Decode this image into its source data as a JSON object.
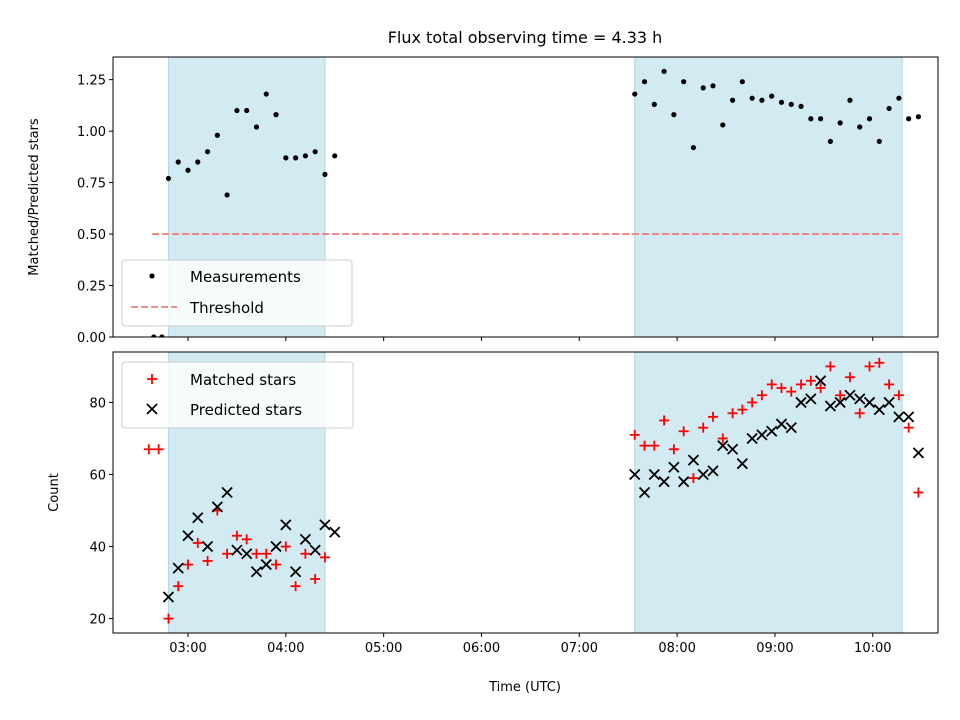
{
  "title": "Flux total observing time = 4.33 h",
  "colors": {
    "span_fill": "#add8e6",
    "measurement": "#000000",
    "threshold": "#f08080",
    "matched": "#ff0000",
    "predicted": "#000000"
  },
  "chart_data": [
    {
      "type": "scatter",
      "ylabel": "Matched/Predicted stars",
      "ylim": [
        0,
        1.36
      ],
      "xlim": [
        "02:14",
        "10:40"
      ],
      "yticks": [
        "0.00",
        "0.25",
        "0.50",
        "0.75",
        "1.00",
        "1.25"
      ],
      "ytick_values": [
        0,
        0.25,
        0.5,
        0.75,
        1.0,
        1.25
      ],
      "observing_windows": [
        [
          "02:48",
          "04:24"
        ],
        [
          "07:34",
          "10:18"
        ]
      ],
      "legend": {
        "placement": "lower left",
        "entries": [
          "Measurements",
          "Threshold"
        ]
      },
      "threshold": {
        "name": "Threshold",
        "value": 0.5,
        "x_range": [
          "02:38",
          "10:18"
        ]
      },
      "series": [
        {
          "name": "Measurements",
          "marker": "dot",
          "x": [
            "02:39",
            "02:44",
            "02:48",
            "02:54",
            "03:00",
            "03:06",
            "03:12",
            "03:18",
            "03:24",
            "03:30",
            "03:36",
            "03:42",
            "03:48",
            "03:54",
            "04:00",
            "04:06",
            "04:12",
            "04:18",
            "04:24",
            "04:30",
            "07:34",
            "07:40",
            "07:46",
            "07:52",
            "07:58",
            "08:04",
            "08:10",
            "08:16",
            "08:22",
            "08:28",
            "08:34",
            "08:40",
            "08:46",
            "08:52",
            "08:58",
            "09:04",
            "09:10",
            "09:16",
            "09:22",
            "09:28",
            "09:34",
            "09:40",
            "09:46",
            "09:52",
            "09:58",
            "10:04",
            "10:10",
            "10:16",
            "10:22",
            "10:28"
          ],
          "y": [
            0.0,
            0.0,
            0.77,
            0.85,
            0.81,
            0.85,
            0.9,
            0.98,
            0.69,
            1.1,
            1.1,
            1.02,
            1.18,
            1.08,
            0.87,
            0.87,
            0.88,
            0.9,
            0.79,
            0.88,
            1.18,
            1.24,
            1.13,
            1.29,
            1.08,
            1.24,
            0.92,
            1.21,
            1.22,
            1.03,
            1.15,
            1.24,
            1.16,
            1.15,
            1.17,
            1.14,
            1.13,
            1.12,
            1.06,
            1.06,
            0.95,
            1.04,
            1.15,
            1.02,
            1.06,
            0.95,
            1.11,
            1.16,
            1.06,
            1.07
          ]
        }
      ]
    },
    {
      "type": "scatter",
      "ylabel": "Count",
      "xlabel": "Time (UTC)",
      "ylim": [
        16,
        94
      ],
      "xlim": [
        "02:14",
        "10:40"
      ],
      "yticks": [
        "20",
        "40",
        "60",
        "80"
      ],
      "ytick_values": [
        20,
        40,
        60,
        80
      ],
      "xticks": [
        "03:00",
        "04:00",
        "05:00",
        "06:00",
        "07:00",
        "08:00",
        "09:00",
        "10:00"
      ],
      "observing_windows": [
        [
          "02:48",
          "04:24"
        ],
        [
          "07:34",
          "10:18"
        ]
      ],
      "legend": {
        "placement": "upper left",
        "entries": [
          "Matched stars",
          "Predicted stars"
        ]
      },
      "series": [
        {
          "name": "Matched stars",
          "marker": "+",
          "x": [
            "02:36",
            "02:42",
            "02:48",
            "02:54",
            "03:00",
            "03:06",
            "03:12",
            "03:18",
            "03:24",
            "03:30",
            "03:36",
            "03:42",
            "03:48",
            "03:54",
            "04:00",
            "04:06",
            "04:12",
            "04:18",
            "04:24",
            "07:34",
            "07:40",
            "07:46",
            "07:52",
            "07:58",
            "08:04",
            "08:10",
            "08:16",
            "08:22",
            "08:28",
            "08:34",
            "08:40",
            "08:46",
            "08:52",
            "08:58",
            "09:04",
            "09:10",
            "09:16",
            "09:22",
            "09:28",
            "09:34",
            "09:40",
            "09:46",
            "09:52",
            "09:58",
            "10:04",
            "10:10",
            "10:16",
            "10:22",
            "10:28"
          ],
          "y": [
            67,
            67,
            20,
            29,
            35,
            41,
            36,
            50,
            38,
            43,
            42,
            38,
            38,
            35,
            40,
            29,
            38,
            31,
            37,
            71,
            68,
            68,
            75,
            67,
            72,
            59,
            73,
            76,
            70,
            77,
            78,
            80,
            82,
            85,
            84,
            83,
            85,
            86,
            84,
            90,
            82,
            87,
            77,
            90,
            91,
            85,
            82,
            73,
            55
          ]
        },
        {
          "name": "Predicted stars",
          "marker": "x",
          "x": [
            "02:48",
            "02:54",
            "03:00",
            "03:06",
            "03:12",
            "03:18",
            "03:24",
            "03:30",
            "03:36",
            "03:42",
            "03:48",
            "03:54",
            "04:00",
            "04:06",
            "04:12",
            "04:18",
            "04:24",
            "04:30",
            "07:34",
            "07:40",
            "07:46",
            "07:52",
            "07:58",
            "08:04",
            "08:10",
            "08:16",
            "08:22",
            "08:28",
            "08:34",
            "08:40",
            "08:46",
            "08:52",
            "08:58",
            "09:04",
            "09:10",
            "09:16",
            "09:22",
            "09:28",
            "09:34",
            "09:40",
            "09:46",
            "09:52",
            "09:58",
            "10:04",
            "10:10",
            "10:16",
            "10:22",
            "10:28"
          ],
          "y": [
            26,
            34,
            43,
            48,
            40,
            51,
            55,
            39,
            38,
            33,
            35,
            40,
            46,
            33,
            42,
            39,
            46,
            44,
            60,
            55,
            60,
            58,
            62,
            58,
            64,
            60,
            61,
            68,
            67,
            63,
            70,
            71,
            72,
            74,
            73,
            80,
            81,
            86,
            79,
            80,
            82,
            81,
            80,
            78,
            80,
            76,
            76,
            66
          ]
        }
      ]
    }
  ]
}
